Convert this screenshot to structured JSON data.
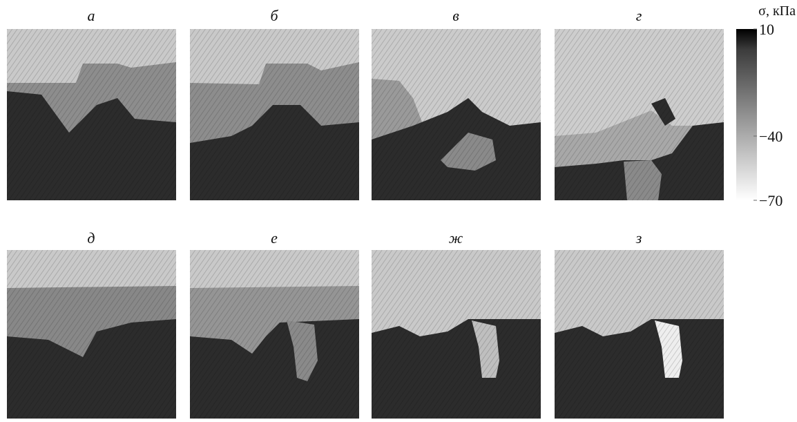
{
  "panels": [
    {
      "label": "а"
    },
    {
      "label": "б"
    },
    {
      "label": "в"
    },
    {
      "label": "г"
    },
    {
      "label": "д"
    },
    {
      "label": "е"
    },
    {
      "label": "ж"
    },
    {
      "label": "з"
    }
  ],
  "colorbar": {
    "title": "σ, кПа",
    "lim": [
      -70,
      10
    ],
    "ticks": [
      10,
      {
        "value": -40,
        "label": "−40"
      },
      {
        "value": -70,
        "label": "−70"
      }
    ],
    "colors": [
      "#000000",
      "#3c3c3c",
      "#ffffff"
    ]
  }
}
